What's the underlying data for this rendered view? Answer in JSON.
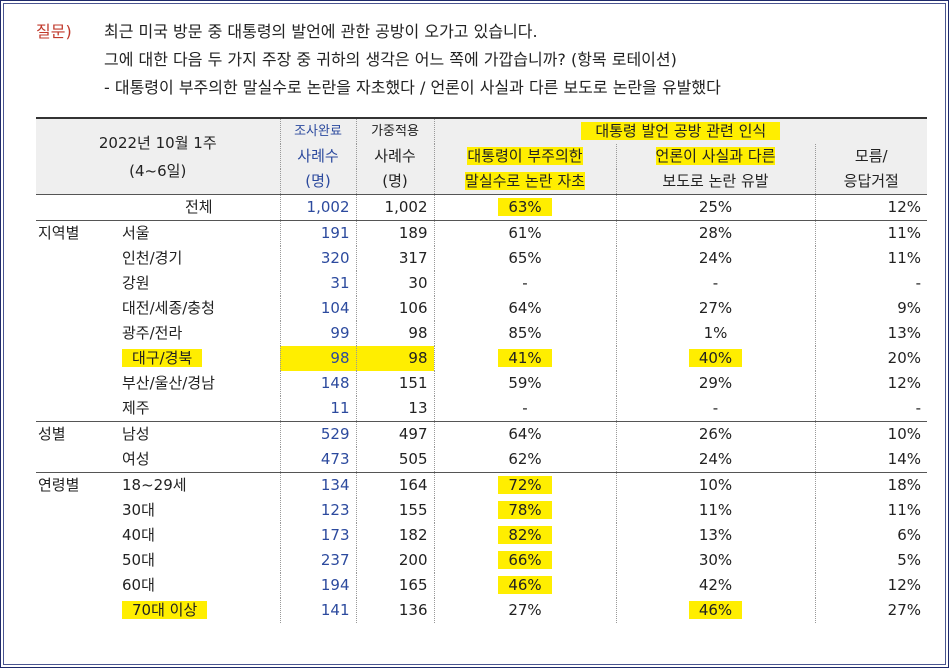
{
  "question": {
    "label": "질문)",
    "lines": [
      "최근 미국 방문 중 대통령의 발언에 관한 공방이 오가고 있습니다.",
      "그에 대한 다음 두 가지 주장 중 귀하의 생각은 어느 쪽에 가깝습니까? (항목 로테이션)",
      "- 대통령이 부주의한 말실수로 논란을 자초했다 / 언론이 사실과 다른 보도로 논란을 유발했다"
    ]
  },
  "header": {
    "period": "2022년 10월 1주",
    "dates": "(4~6일)",
    "surveyed_top": "조사완료",
    "weighted_top": "가중적용",
    "cases": "사례수",
    "unit": "(명)",
    "group_title": "대통령 발언 공방 관련 인식",
    "col1a": "대통령이 부주의한",
    "col1b": "말실수로 논란 자초",
    "col2a": "언론이 사실과 다른",
    "col2b": "보도로 논란 유발",
    "col3a": "모름/",
    "col3b": "응답거절"
  },
  "highlight_color": "#ffee00",
  "rows": [
    {
      "group": "",
      "sub": "전체",
      "n1": "1,002",
      "n2": "1,002",
      "a": "63%",
      "b": "25%",
      "c": "12%"
    },
    {
      "group": "지역별",
      "sub": "서울",
      "n1": "191",
      "n2": "189",
      "a": "61%",
      "b": "28%",
      "c": "11%"
    },
    {
      "group": "",
      "sub": "인천/경기",
      "n1": "320",
      "n2": "317",
      "a": "65%",
      "b": "24%",
      "c": "11%"
    },
    {
      "group": "",
      "sub": "강원",
      "n1": "31",
      "n2": "30",
      "a": "-",
      "b": "-",
      "c": "-"
    },
    {
      "group": "",
      "sub": "대전/세종/충청",
      "n1": "104",
      "n2": "106",
      "a": "64%",
      "b": "27%",
      "c": "9%"
    },
    {
      "group": "",
      "sub": "광주/전라",
      "n1": "99",
      "n2": "98",
      "a": "85%",
      "b": "1%",
      "c": "13%"
    },
    {
      "group": "",
      "sub": "대구/경북",
      "n1": "98",
      "n2": "98",
      "a": "41%",
      "b": "40%",
      "c": "20%"
    },
    {
      "group": "",
      "sub": "부산/울산/경남",
      "n1": "148",
      "n2": "151",
      "a": "59%",
      "b": "29%",
      "c": "12%"
    },
    {
      "group": "",
      "sub": "제주",
      "n1": "11",
      "n2": "13",
      "a": "-",
      "b": "-",
      "c": "-"
    },
    {
      "group": "성별",
      "sub": "남성",
      "n1": "529",
      "n2": "497",
      "a": "64%",
      "b": "26%",
      "c": "10%"
    },
    {
      "group": "",
      "sub": "여성",
      "n1": "473",
      "n2": "505",
      "a": "62%",
      "b": "24%",
      "c": "14%"
    },
    {
      "group": "연령별",
      "sub": "18~29세",
      "n1": "134",
      "n2": "164",
      "a": "72%",
      "b": "10%",
      "c": "18%"
    },
    {
      "group": "",
      "sub": "30대",
      "n1": "123",
      "n2": "155",
      "a": "78%",
      "b": "11%",
      "c": "11%"
    },
    {
      "group": "",
      "sub": "40대",
      "n1": "173",
      "n2": "182",
      "a": "82%",
      "b": "13%",
      "c": "6%"
    },
    {
      "group": "",
      "sub": "50대",
      "n1": "237",
      "n2": "200",
      "a": "66%",
      "b": "30%",
      "c": "5%"
    },
    {
      "group": "",
      "sub": "60대",
      "n1": "194",
      "n2": "165",
      "a": "46%",
      "b": "42%",
      "c": "12%"
    },
    {
      "group": "",
      "sub": "70대 이상",
      "n1": "141",
      "n2": "136",
      "a": "27%",
      "b": "46%",
      "c": "27%"
    }
  ]
}
